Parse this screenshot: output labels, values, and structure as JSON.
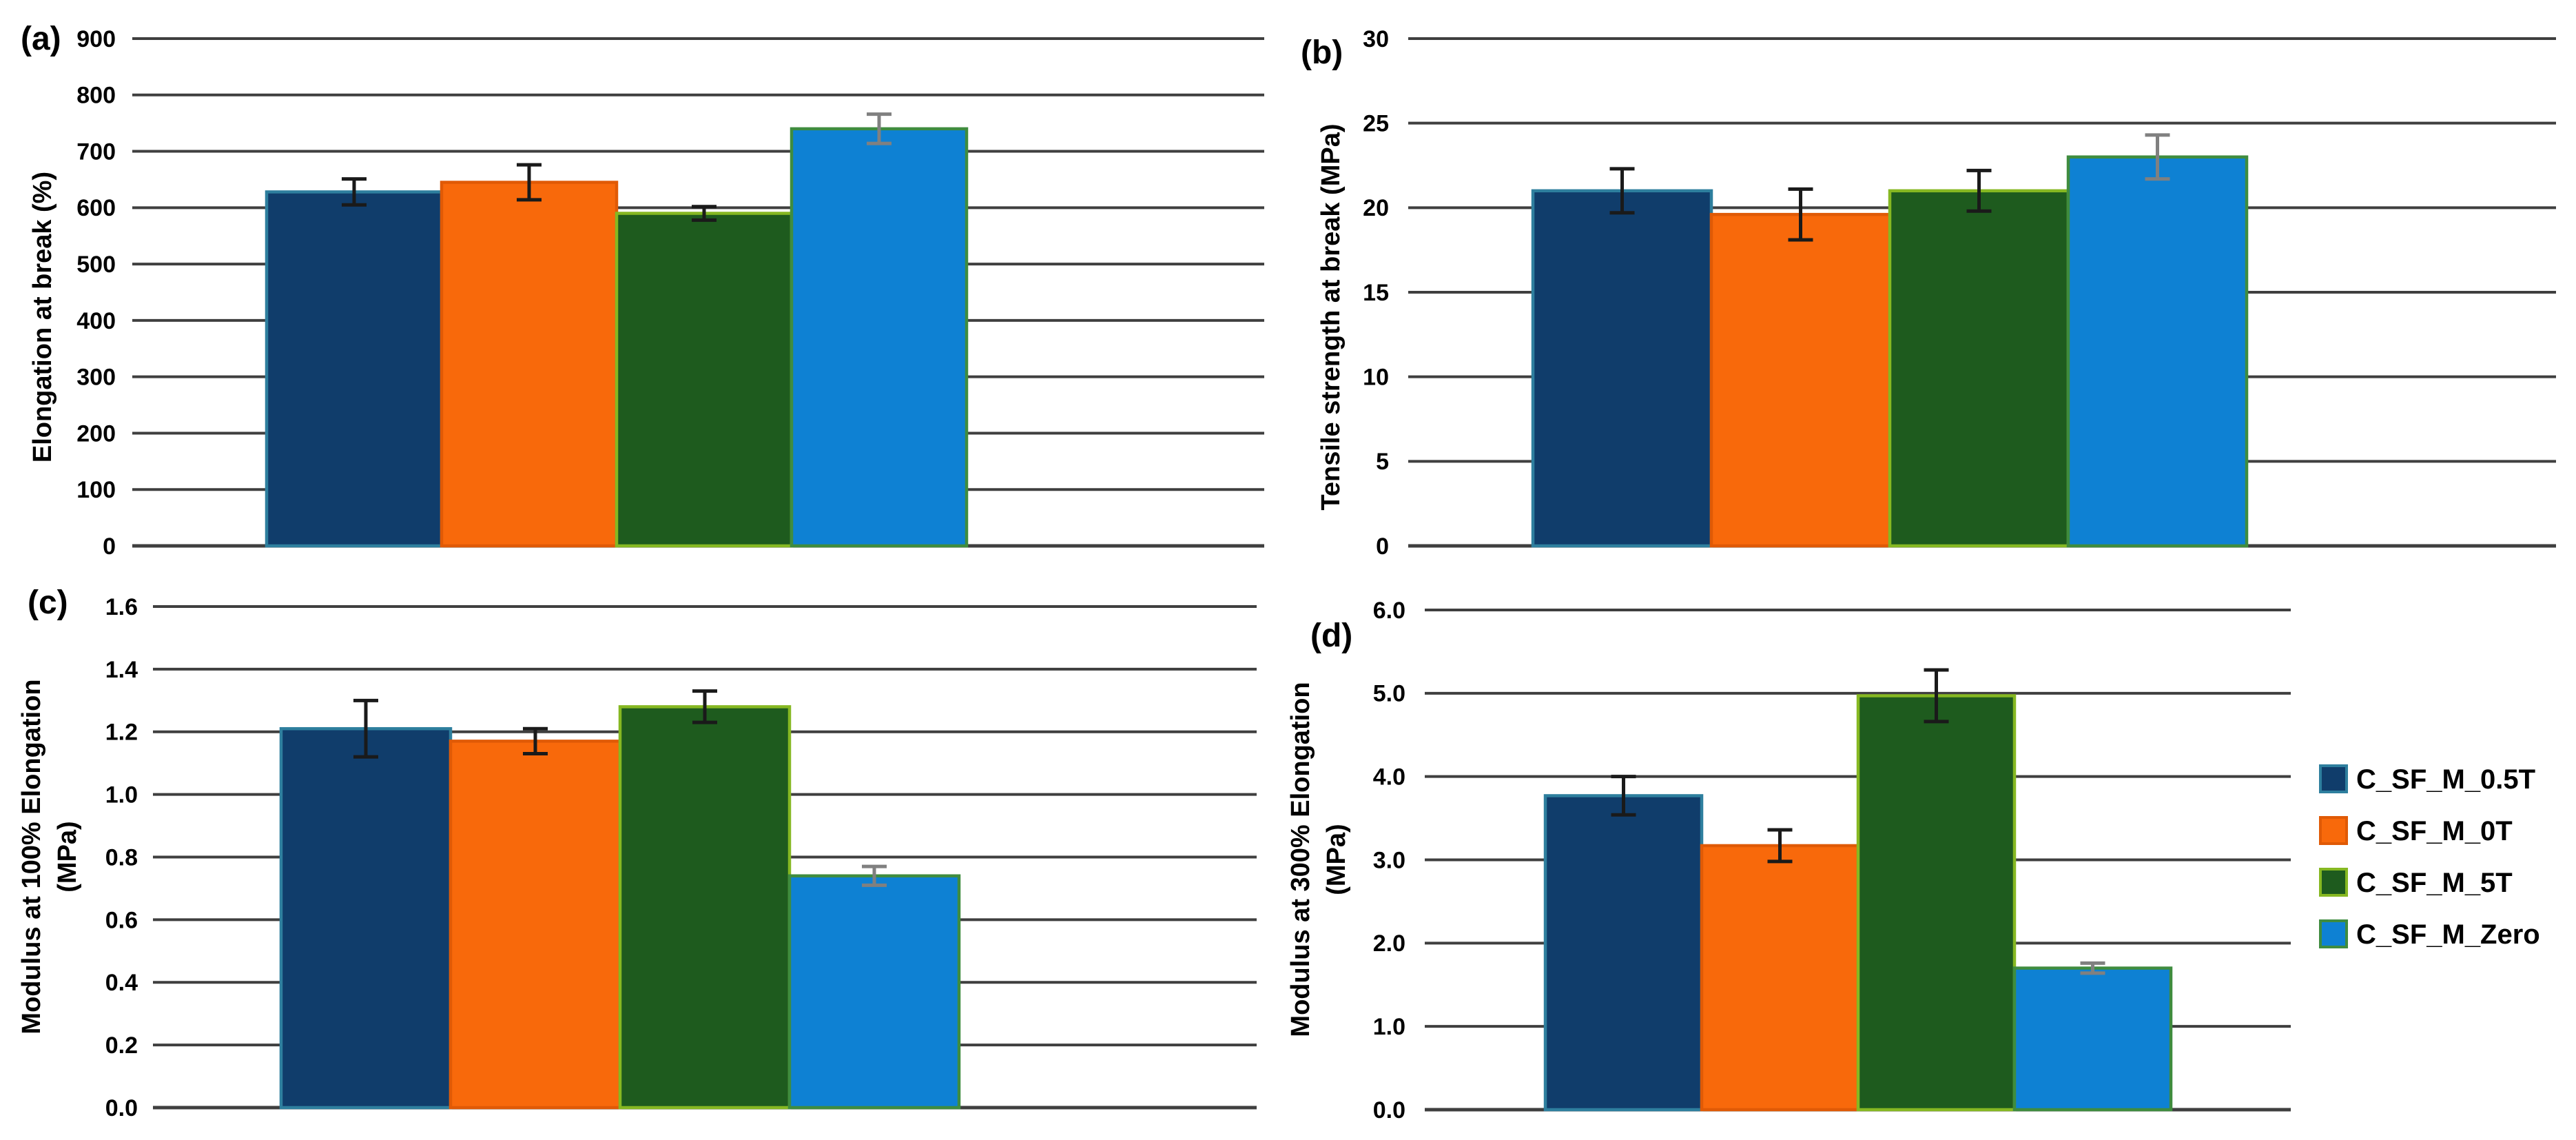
{
  "page": {
    "background": "#FFFFFF",
    "gridline_color": "#3F3F3F",
    "text_color": "#000000"
  },
  "series": [
    {
      "name": "C_SF_M_0.5T",
      "fill": "#103D6B",
      "border": "#2E7F9E",
      "error_color": "#1A1A1A"
    },
    {
      "name": "C_SF_M_0T",
      "fill": "#F8690B",
      "border": "#E05A06",
      "error_color": "#1A1A1A"
    },
    {
      "name": "C_SF_M_5T",
      "fill": "#1E5B1E",
      "border": "#86B822",
      "error_color": "#1A1A1A"
    },
    {
      "name": "C_SF_M_Zero",
      "fill": "#0E81D3",
      "border": "#3F8C3F",
      "error_color": "#808080"
    }
  ],
  "legend": {
    "position": "right",
    "items": [
      "C_SF_M_0.5T",
      "C_SF_M_0T",
      "C_SF_M_5T",
      "C_SF_M_Zero"
    ]
  },
  "chart_data": [
    {
      "id": "a",
      "panel_label": "(a)",
      "type": "bar",
      "ylabel": "Elongation at break (%)",
      "ylabel_line2": "",
      "categories": [
        "C_SF_M_0.5T",
        "C_SF_M_0T",
        "C_SF_M_5T",
        "C_SF_M_Zero"
      ],
      "values": [
        628,
        645,
        590,
        740
      ],
      "errors": [
        23,
        31,
        12,
        26
      ],
      "ylim": [
        0,
        900
      ],
      "ystep": 100,
      "tick_decimals": 0,
      "grid": true,
      "legend_visible": false
    },
    {
      "id": "b",
      "panel_label": "(b)",
      "type": "bar",
      "ylabel": "Tensile strength at break (MPa)",
      "ylabel_line2": "",
      "categories": [
        "C_SF_M_0.5T",
        "C_SF_M_0T",
        "C_SF_M_5T",
        "C_SF_M_Zero"
      ],
      "values": [
        21.0,
        19.6,
        21.0,
        23.0
      ],
      "errors": [
        1.3,
        1.5,
        1.2,
        1.3
      ],
      "ylim": [
        0,
        30
      ],
      "ystep": 5,
      "tick_decimals": 0,
      "grid": true,
      "legend_visible": false
    },
    {
      "id": "c",
      "panel_label": "(c)",
      "type": "bar",
      "ylabel": "Modulus at 100% Elongation",
      "ylabel_line2": "(MPa)",
      "categories": [
        "C_SF_M_0.5T",
        "C_SF_M_0T",
        "C_SF_M_5T",
        "C_SF_M_Zero"
      ],
      "values": [
        1.21,
        1.17,
        1.28,
        0.74
      ],
      "errors": [
        0.09,
        0.04,
        0.05,
        0.03
      ],
      "ylim": [
        0,
        1.6
      ],
      "ystep": 0.2,
      "tick_decimals": 1,
      "grid": true,
      "legend_visible": false
    },
    {
      "id": "d",
      "panel_label": "(d)",
      "type": "bar",
      "ylabel": "Modulus at 300% Elongation",
      "ylabel_line2": "(MPa)",
      "categories": [
        "C_SF_M_0.5T",
        "C_SF_M_0T",
        "C_SF_M_5T",
        "C_SF_M_Zero"
      ],
      "values": [
        3.77,
        3.17,
        4.97,
        1.7
      ],
      "errors": [
        0.23,
        0.19,
        0.31,
        0.06
      ],
      "ylim": [
        0,
        6.0
      ],
      "ystep": 1.0,
      "tick_decimals": 1,
      "grid": true,
      "legend_visible": true
    }
  ]
}
